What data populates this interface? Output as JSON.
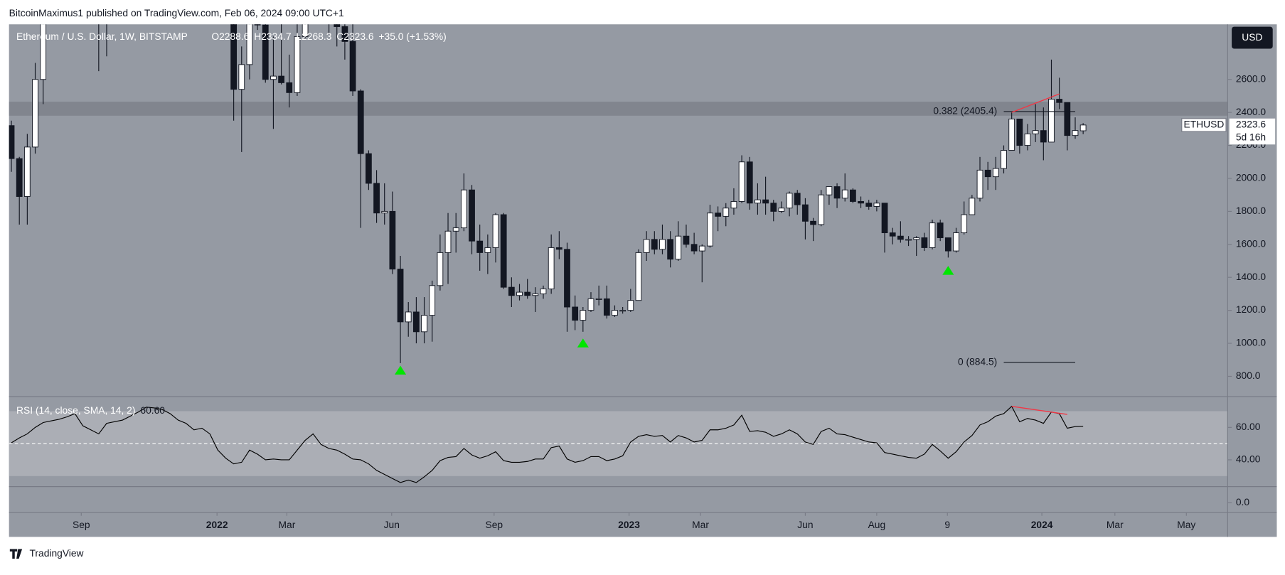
{
  "header": "BitcoinMaximus1 published on TradingView.com, Feb 06, 2024 09:00 UTC+1",
  "footer": "TradingView",
  "chart_data": [
    {
      "type": "candlestick",
      "title": "Ethereum / U.S. Dollar, 1W, BITSTAMP",
      "ohlc_labels": [
        "O2288.6",
        "H2334.7",
        "L2268.3",
        "C2323.6",
        "+35.0 (+1.53%)"
      ],
      "symbol": "ETHUSD",
      "countdown": "5d 16h",
      "currency": "USD",
      "x": [
        0,
        1,
        2,
        3,
        4,
        5,
        6,
        7,
        8,
        9,
        10,
        11,
        12,
        13,
        14,
        15,
        16,
        17,
        18,
        19,
        20,
        21,
        22,
        23,
        24,
        25,
        26,
        27,
        28,
        29,
        30,
        31,
        32,
        33,
        34,
        35,
        36,
        37,
        38,
        39,
        40,
        41,
        42,
        43,
        44,
        45,
        46,
        47,
        48,
        49,
        50,
        51,
        52,
        53,
        54,
        55,
        56,
        57,
        58,
        59,
        60,
        61,
        62,
        63,
        64,
        65,
        66,
        67,
        68,
        69,
        70,
        71,
        72,
        73,
        74,
        75,
        76,
        77,
        78,
        79,
        80,
        81,
        82,
        83,
        84,
        85,
        86,
        87,
        88,
        89,
        90,
        91,
        92,
        93,
        94,
        95,
        96,
        97,
        98,
        99,
        100,
        101,
        102,
        103,
        104,
        105,
        106,
        107,
        108,
        109,
        110,
        111,
        112,
        113,
        114,
        115,
        116,
        117,
        118,
        119,
        120,
        121,
        122,
        123,
        124,
        125,
        126,
        127,
        128,
        129,
        130,
        131,
        132,
        133,
        134,
        135
      ],
      "open": [
        2320,
        2120,
        1890,
        2190,
        2600,
        3010,
        3310,
        3240,
        3230,
        3930,
        3410,
        3430,
        3060,
        3420,
        3580,
        3840,
        4160,
        4310,
        4610,
        4560,
        4300,
        4440,
        4120,
        3960,
        3960,
        4050,
        3770,
        3200,
        3340,
        2540,
        2690,
        2980,
        2930,
        2600,
        2620,
        2580,
        2520,
        2860,
        3130,
        3450,
        3200,
        2990,
        2920,
        2830,
        2530,
        2150,
        1970,
        1790,
        1800,
        1450,
        1130,
        1190,
        1070,
        1170,
        1350,
        1550,
        1680,
        1700,
        1930,
        1620,
        1550,
        1580,
        1780,
        1340,
        1290,
        1310,
        1290,
        1300,
        1330,
        1580,
        1570,
        1220,
        1140,
        1200,
        1270,
        1270,
        1170,
        1200,
        1200,
        1260,
        1550,
        1630,
        1570,
        1630,
        1510,
        1650,
        1600,
        1560,
        1590,
        1790,
        1770,
        1820,
        1860,
        2100,
        1850,
        1870,
        1850,
        1800,
        1820,
        1910,
        1840,
        1740,
        1720,
        1900,
        1950,
        1880,
        1930,
        1860,
        1850,
        1830,
        1850,
        1670,
        1650,
        1630,
        1630,
        1640,
        1580,
        1730,
        1640,
        1560,
        1670,
        1780,
        1880,
        2050,
        2010,
        2060,
        2170,
        2360,
        2200,
        2270,
        2290,
        2220,
        2480,
        2460,
        2260,
        2288.6
      ],
      "high": [
        2350,
        2130,
        2270,
        2700,
        3180,
        3330,
        3340,
        3370,
        3970,
        4030,
        3670,
        3440,
        3490,
        3670,
        3890,
        4380,
        4460,
        4800,
        4870,
        4560,
        4440,
        4780,
        4370,
        4040,
        4130,
        4100,
        3860,
        3410,
        3350,
        2800,
        3030,
        3280,
        3210,
        2860,
        3050,
        2750,
        2990,
        3150,
        3480,
        3580,
        3200,
        3190,
        3000,
        3000,
        2540,
        2170,
        2050,
        1970,
        1920,
        1530,
        1250,
        1280,
        1280,
        1380,
        1660,
        1790,
        1790,
        2030,
        1960,
        1720,
        1660,
        1790,
        1790,
        1400,
        1360,
        1390,
        1340,
        1350,
        1660,
        1680,
        1610,
        1290,
        1220,
        1310,
        1350,
        1350,
        1230,
        1220,
        1330,
        1570,
        1680,
        1680,
        1720,
        1680,
        1740,
        1720,
        1670,
        1600,
        1840,
        1830,
        1850,
        1940,
        2140,
        2130,
        1970,
        2010,
        1870,
        1860,
        1920,
        1930,
        1880,
        1760,
        1930,
        1950,
        1970,
        2030,
        1940,
        1890,
        1870,
        1870,
        1850,
        1700,
        1740,
        1650,
        1650,
        1670,
        1750,
        1750,
        1640,
        1700,
        1860,
        1900,
        2130,
        2100,
        2130,
        2200,
        2400,
        2360,
        2330,
        2450,
        2430,
        2720,
        2610,
        2460,
        2370,
        2334.7
      ],
      "low": [
        2040,
        1720,
        1720,
        2150,
        2450,
        2950,
        2950,
        3060,
        3210,
        3010,
        3300,
        2650,
        2740,
        3300,
        3380,
        3700,
        3900,
        4280,
        4520,
        3960,
        3920,
        3500,
        3640,
        3600,
        3890,
        3620,
        3000,
        3150,
        2350,
        2160,
        2600,
        2900,
        2580,
        2300,
        2570,
        2430,
        2500,
        2850,
        3110,
        3160,
        2880,
        2800,
        2720,
        2500,
        1700,
        1930,
        1730,
        1720,
        1420,
        880,
        1040,
        1000,
        1000,
        1010,
        1320,
        1360,
        1550,
        1680,
        1540,
        1440,
        1420,
        1490,
        1330,
        1220,
        1260,
        1270,
        1190,
        1270,
        1300,
        1510,
        1070,
        1080,
        1070,
        1190,
        1230,
        1150,
        1160,
        1180,
        1190,
        1260,
        1500,
        1540,
        1540,
        1460,
        1500,
        1580,
        1540,
        1370,
        1580,
        1680,
        1710,
        1780,
        1850,
        1810,
        1780,
        1780,
        1740,
        1790,
        1770,
        1780,
        1630,
        1620,
        1710,
        1840,
        1820,
        1860,
        1850,
        1820,
        1810,
        1800,
        1550,
        1600,
        1610,
        1590,
        1530,
        1560,
        1570,
        1620,
        1520,
        1550,
        1660,
        1780,
        1860,
        1930,
        1930,
        2030,
        2170,
        2150,
        2170,
        2220,
        2110,
        2220,
        2420,
        2170,
        2240,
        2268.3
      ],
      "close": [
        2120,
        1890,
        2190,
        2600,
        3010,
        3310,
        3240,
        3230,
        3930,
        3410,
        3430,
        3060,
        3420,
        3580,
        3840,
        4160,
        4310,
        4610,
        4560,
        4300,
        4440,
        4120,
        3960,
        3960,
        4050,
        3770,
        3200,
        3340,
        2540,
        2690,
        2980,
        2930,
        2600,
        2620,
        2580,
        2520,
        2860,
        3130,
        3450,
        3200,
        2990,
        2920,
        2830,
        2530,
        2150,
        1970,
        1790,
        1800,
        1450,
        1130,
        1190,
        1070,
        1170,
        1350,
        1550,
        1680,
        1700,
        1930,
        1620,
        1550,
        1580,
        1780,
        1340,
        1290,
        1310,
        1290,
        1300,
        1330,
        1580,
        1570,
        1220,
        1140,
        1200,
        1270,
        1270,
        1170,
        1200,
        1200,
        1260,
        1550,
        1630,
        1570,
        1630,
        1510,
        1650,
        1600,
        1560,
        1590,
        1790,
        1770,
        1820,
        1860,
        2100,
        1850,
        1870,
        1850,
        1800,
        1820,
        1910,
        1840,
        1740,
        1720,
        1900,
        1950,
        1880,
        1930,
        1860,
        1850,
        1830,
        1850,
        1670,
        1650,
        1630,
        1630,
        1640,
        1580,
        1730,
        1640,
        1560,
        1670,
        1780,
        1880,
        2050,
        2010,
        2060,
        2170,
        2360,
        2200,
        2270,
        2290,
        2220,
        2480,
        2460,
        2260,
        2290,
        2323.6
      ],
      "xlim": [
        -0.3,
        153.2
      ],
      "xticks": [
        {
          "value": 8.8,
          "label": "Sep"
        },
        {
          "value": 25.9,
          "label": "2022"
        },
        {
          "value": 34.7,
          "label": "Mar"
        },
        {
          "value": 47.9,
          "label": "Jun"
        },
        {
          "value": 60.8,
          "label": "Sep"
        },
        {
          "value": 77.8,
          "label": "2023"
        },
        {
          "value": 86.8,
          "label": "Mar"
        },
        {
          "value": 100,
          "label": "Jun"
        },
        {
          "value": 109,
          "label": "Aug"
        },
        {
          "value": 117.9,
          "label": "9"
        },
        {
          "value": 129.8,
          "label": "2024"
        },
        {
          "value": 139,
          "label": "Mar"
        },
        {
          "value": 148,
          "label": "May"
        }
      ],
      "ylim": [
        682,
        2934
      ],
      "yticks": [
        {
          "value": 800,
          "label": "800.0"
        },
        {
          "value": 1000,
          "label": "1000.0"
        },
        {
          "value": 1200,
          "label": "1200.0"
        },
        {
          "value": 1400,
          "label": "1400.0"
        },
        {
          "value": 1600,
          "label": "1600.0"
        },
        {
          "value": 1800,
          "label": "1800.0"
        },
        {
          "value": 2000,
          "label": "2000.0"
        },
        {
          "value": 2200,
          "label": "2200.0"
        },
        {
          "value": 2400,
          "label": "2400.0"
        },
        {
          "value": 2600,
          "label": "2600.0"
        }
      ],
      "zone": [
        2380,
        2465
      ],
      "fib_levels": [
        {
          "label": "0.382 (2405.4)",
          "value": 2405.4,
          "x": [
            125,
            134
          ]
        },
        {
          "label": "0 (884.5)",
          "value": 884.5,
          "x": [
            125,
            134
          ]
        }
      ],
      "trendline": {
        "x": [
          126,
          132
        ],
        "y": [
          2400,
          2512
        ],
        "color": "#f23645"
      },
      "markers": {
        "x": [
          49,
          72,
          118
        ],
        "y": [
          835,
          1000,
          1440
        ],
        "color": "#00e600"
      }
    },
    {
      "type": "line",
      "title": "RSI (14, close, SMA, 14, 2)",
      "last_label": "60.60",
      "values": [
        50.5,
        53.5,
        56,
        60,
        63,
        64,
        65,
        66.5,
        68.5,
        61,
        58.5,
        56,
        62.5,
        63.5,
        64.5,
        67,
        69.5,
        72.5,
        72,
        71,
        68.5,
        64.5,
        62.5,
        58.5,
        59.5,
        56,
        46,
        41,
        37.5,
        38.5,
        46,
        43.5,
        40,
        40.5,
        40,
        40,
        46,
        52,
        56,
        49.5,
        47,
        46,
        43.5,
        40.5,
        40,
        37.5,
        33.5,
        31,
        28.5,
        26,
        27.5,
        26,
        29.5,
        33.5,
        39.5,
        41.5,
        42,
        47,
        43,
        41,
        42.5,
        45,
        39.5,
        38.5,
        38.5,
        39,
        40.5,
        40.5,
        47.5,
        48.5,
        40.5,
        38.5,
        39.5,
        42,
        42,
        39.5,
        40.5,
        42.5,
        51,
        54.5,
        55.5,
        54.5,
        55,
        51,
        55,
        53.5,
        51,
        52,
        58.5,
        58.5,
        59.5,
        61.5,
        67.5,
        57.5,
        58,
        57,
        54.5,
        56,
        58.5,
        56,
        51,
        49.5,
        57.5,
        59.5,
        56,
        55.5,
        54,
        52.5,
        51,
        50.5,
        44.5,
        43.5,
        42.5,
        41.5,
        41,
        43.5,
        49.5,
        45.5,
        41,
        45,
        51,
        55,
        61.5,
        63.5,
        67,
        68.5,
        73,
        63.5,
        65.5,
        64.5,
        62.5,
        69.5,
        68.5,
        59.5,
        60.5,
        60.6
      ],
      "color": "#000000",
      "ylim": [
        23.5,
        78.5
      ],
      "yticks": [
        {
          "value": 60,
          "label": "60.00"
        },
        {
          "value": 40,
          "label": "40.00"
        }
      ],
      "band": [
        30,
        70
      ],
      "midline": 50,
      "trendline": {
        "x": [
          126,
          133
        ],
        "y": [
          73,
          68
        ],
        "color": "#f23645"
      }
    },
    {
      "type": "pane",
      "ylim": [
        -1.5,
        2.5
      ],
      "yticks": [
        {
          "value": 0,
          "label": "0.0"
        }
      ]
    }
  ]
}
